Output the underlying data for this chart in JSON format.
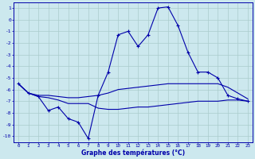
{
  "xlabel": "Graphe des températures (°C)",
  "xlim": [
    -0.5,
    23.5
  ],
  "ylim": [
    -10.5,
    1.5
  ],
  "yticks": [
    1,
    0,
    -1,
    -2,
    -3,
    -4,
    -5,
    -6,
    -7,
    -8,
    -9,
    -10
  ],
  "xticks": [
    0,
    1,
    2,
    3,
    4,
    5,
    6,
    7,
    8,
    9,
    10,
    11,
    12,
    13,
    14,
    15,
    16,
    17,
    18,
    19,
    20,
    21,
    22,
    23
  ],
  "background_color": "#cce8ee",
  "grid_color": "#aacccc",
  "line_color": "#0000aa",
  "line1_x": [
    0,
    1,
    2,
    3,
    4,
    5,
    6,
    7,
    8,
    9,
    10,
    11,
    12,
    13,
    14,
    15,
    16,
    17,
    18,
    19,
    20,
    21,
    22,
    23
  ],
  "line1_y": [
    -5.5,
    -6.3,
    -6.6,
    -7.8,
    -7.5,
    -8.5,
    -8.8,
    -10.2,
    -6.5,
    -4.5,
    -1.3,
    -1.0,
    -2.3,
    -1.3,
    1.0,
    1.1,
    -0.5,
    -2.8,
    -4.5,
    -4.5,
    -5.0,
    -6.5,
    -6.8,
    -7.0
  ],
  "line2_x": [
    0,
    1,
    2,
    3,
    4,
    5,
    6,
    7,
    8,
    9,
    10,
    11,
    12,
    13,
    14,
    15,
    16,
    17,
    18,
    19,
    20,
    21,
    22,
    23
  ],
  "line2_y": [
    -5.5,
    -6.3,
    -6.5,
    -6.5,
    -6.6,
    -6.7,
    -6.7,
    -6.6,
    -6.5,
    -6.3,
    -6.0,
    -5.9,
    -5.8,
    -5.7,
    -5.6,
    -5.5,
    -5.5,
    -5.5,
    -5.5,
    -5.5,
    -5.5,
    -5.8,
    -6.3,
    -6.8
  ],
  "line3_x": [
    0,
    1,
    2,
    3,
    4,
    5,
    6,
    7,
    8,
    9,
    10,
    11,
    12,
    13,
    14,
    15,
    16,
    17,
    18,
    19,
    20,
    21,
    22,
    23
  ],
  "line3_y": [
    -5.5,
    -6.3,
    -6.6,
    -6.7,
    -6.9,
    -7.2,
    -7.2,
    -7.2,
    -7.6,
    -7.7,
    -7.7,
    -7.6,
    -7.5,
    -7.5,
    -7.4,
    -7.3,
    -7.2,
    -7.1,
    -7.0,
    -7.0,
    -7.0,
    -6.9,
    -6.9,
    -7.0
  ]
}
